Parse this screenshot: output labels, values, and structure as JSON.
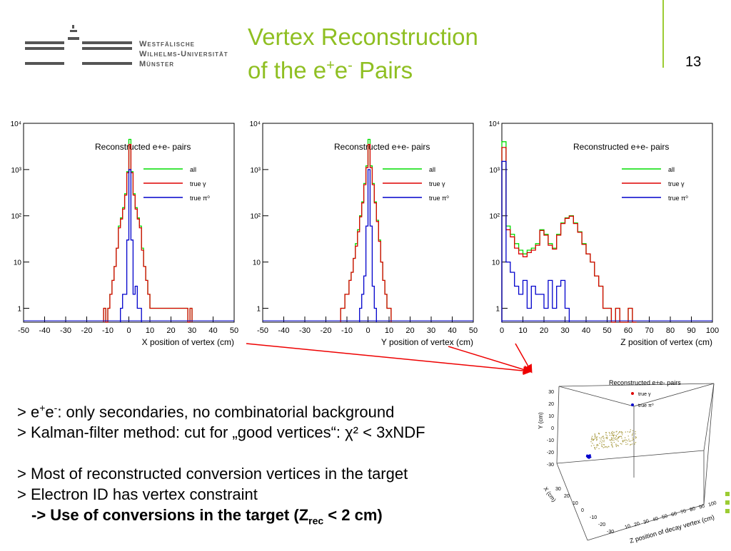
{
  "university": {
    "line1": "Westfälische",
    "line2": "Wilhelms-Universität",
    "line3": "Münster"
  },
  "title": {
    "line1": "Vertex Reconstruction",
    "line2_prefix": "of the e",
    "sup1": "+",
    "mid": "e",
    "sup2": "-",
    "suffix": " Pairs"
  },
  "page_number": "13",
  "colors": {
    "accent": "#9ccc33",
    "all": "#00dd00",
    "gamma": "#dd0000",
    "pi0": "#0000cc"
  },
  "chart_data": [
    {
      "type": "line",
      "title": "Reconstructed e+e- pairs",
      "xlabel": "X position of vertex (cm)",
      "xlim": [
        -50,
        50
      ],
      "ylim": [
        0.5,
        10000
      ],
      "yscale": "log",
      "xticks": [
        "-50",
        "-40",
        "-30",
        "-20",
        "-10",
        "0",
        "10",
        "20",
        "30",
        "40",
        "50"
      ],
      "yticks": [
        "1",
        "10",
        "10²",
        "10³",
        "10⁴"
      ],
      "legend": [
        "all",
        "true γ",
        "true π⁰"
      ],
      "bin_width": 1,
      "series": [
        {
          "name": "all",
          "x": [
            -12,
            -11,
            -10,
            -9,
            -8,
            -7,
            -6,
            -5,
            -4,
            -3,
            -2,
            -1,
            0,
            1,
            2,
            3,
            4,
            5,
            6,
            7,
            8,
            9,
            10,
            11,
            27,
            28,
            29
          ],
          "values": [
            1,
            0,
            1,
            2,
            4,
            8,
            20,
            60,
            90,
            150,
            300,
            900,
            4500,
            900,
            300,
            150,
            90,
            60,
            20,
            8,
            4,
            2,
            1,
            1,
            1,
            0,
            1
          ]
        },
        {
          "name": "true γ",
          "x": [
            -12,
            -11,
            -10,
            -9,
            -8,
            -7,
            -6,
            -5,
            -4,
            -3,
            -2,
            -1,
            0,
            1,
            2,
            3,
            4,
            5,
            6,
            7,
            8,
            9,
            10,
            11,
            27,
            28,
            29
          ],
          "values": [
            1,
            0,
            1,
            2,
            4,
            8,
            20,
            55,
            85,
            140,
            280,
            850,
            3500,
            850,
            280,
            140,
            85,
            55,
            18,
            8,
            4,
            2,
            1,
            1,
            1,
            0,
            1
          ]
        },
        {
          "name": "true π⁰",
          "x": [
            -4,
            -3,
            -2,
            -1,
            0,
            1,
            2,
            3,
            4,
            5
          ],
          "values": [
            1,
            2,
            2,
            30,
            1000,
            30,
            2,
            3,
            1,
            1
          ]
        }
      ]
    },
    {
      "type": "line",
      "title": "Reconstructed e+e- pairs",
      "xlabel": "Y position of vertex (cm)",
      "xlim": [
        -50,
        50
      ],
      "ylim": [
        0.5,
        10000
      ],
      "yscale": "log",
      "xticks": [
        "-50",
        "-40",
        "-30",
        "-20",
        "-10",
        "0",
        "10",
        "20",
        "30",
        "40",
        "50"
      ],
      "yticks": [
        "1",
        "10",
        "10²",
        "10³",
        "10⁴"
      ],
      "legend": [
        "all",
        "true γ",
        "true π⁰"
      ],
      "bin_width": 1,
      "series": [
        {
          "name": "all",
          "x": [
            -13,
            -12,
            -11,
            -10,
            -9,
            -8,
            -7,
            -6,
            -5,
            -4,
            -3,
            -2,
            -1,
            0,
            1,
            2,
            3,
            4,
            5,
            6,
            7,
            8,
            9,
            10
          ],
          "values": [
            1,
            1,
            2,
            2,
            4,
            6,
            12,
            25,
            50,
            100,
            200,
            500,
            1200,
            4500,
            1200,
            500,
            200,
            80,
            30,
            10,
            4,
            2,
            1,
            1
          ]
        },
        {
          "name": "true γ",
          "x": [
            -13,
            -12,
            -11,
            -10,
            -9,
            -8,
            -7,
            -6,
            -5,
            -4,
            -3,
            -2,
            -1,
            0,
            1,
            2,
            3,
            4,
            5,
            6,
            7,
            8,
            9,
            10
          ],
          "values": [
            1,
            1,
            2,
            2,
            4,
            6,
            12,
            22,
            45,
            95,
            190,
            470,
            1100,
            3500,
            1100,
            470,
            190,
            75,
            28,
            10,
            4,
            2,
            1,
            1
          ]
        },
        {
          "name": "true π⁰",
          "x": [
            -4,
            -3,
            -2,
            -1,
            0,
            1,
            2,
            3
          ],
          "values": [
            1,
            2,
            5,
            60,
            1000,
            60,
            3,
            1
          ]
        }
      ]
    },
    {
      "type": "line",
      "title": "Reconstructed e+e- pairs",
      "xlabel": "Z position of vertex (cm)",
      "xlim": [
        0,
        100
      ],
      "ylim": [
        0.5,
        10000
      ],
      "yscale": "log",
      "xticks": [
        "0",
        "10",
        "20",
        "30",
        "40",
        "50",
        "60",
        "70",
        "80",
        "90",
        "100"
      ],
      "yticks": [
        "1",
        "10",
        "10²",
        "10³",
        "10⁴"
      ],
      "legend": [
        "all",
        "true γ",
        "true π⁰"
      ],
      "bin_width": 2,
      "series": [
        {
          "name": "all",
          "x": [
            0,
            2,
            4,
            6,
            8,
            10,
            12,
            14,
            16,
            18,
            20,
            22,
            24,
            26,
            28,
            30,
            32,
            34,
            36,
            38,
            40,
            42,
            44,
            46,
            48,
            50,
            52,
            54,
            56,
            58,
            60,
            62
          ],
          "values": [
            4000,
            60,
            40,
            25,
            18,
            15,
            18,
            20,
            25,
            50,
            40,
            25,
            20,
            40,
            70,
            90,
            100,
            70,
            45,
            25,
            15,
            10,
            5,
            3,
            1,
            1,
            0,
            1,
            0,
            0,
            1,
            0
          ]
        },
        {
          "name": "true γ",
          "x": [
            0,
            2,
            4,
            6,
            8,
            10,
            12,
            14,
            16,
            18,
            20,
            22,
            24,
            26,
            28,
            30,
            32,
            34,
            36,
            38,
            40,
            42,
            44,
            46,
            48,
            50,
            52,
            54,
            56,
            58,
            60,
            62
          ],
          "values": [
            3000,
            50,
            35,
            20,
            15,
            13,
            16,
            18,
            23,
            48,
            38,
            23,
            19,
            38,
            68,
            88,
            98,
            68,
            44,
            24,
            15,
            10,
            5,
            3,
            1,
            1,
            0,
            1,
            0,
            0,
            1,
            0
          ]
        },
        {
          "name": "true π⁰",
          "x": [
            0,
            2,
            4,
            6,
            8,
            10,
            12,
            14,
            16,
            18,
            20,
            22,
            24,
            26,
            28,
            30
          ],
          "values": [
            1500,
            10,
            6,
            3,
            2,
            4,
            1,
            3,
            2,
            2,
            1,
            4,
            1,
            3,
            4,
            1
          ]
        }
      ]
    },
    {
      "type": "scatter",
      "title": "Reconstructed e+e- pairs",
      "xlabel": "X (cm)",
      "ylabel": "Y (cm)",
      "zlabel": "Z position of decay vertex (cm)",
      "legend": [
        "true γ",
        "true π⁰"
      ],
      "yticks": [
        "-30",
        "-20",
        "-10",
        "0",
        "10",
        "20",
        "30"
      ],
      "xticks": [
        "30",
        "20",
        "10",
        "0",
        "-10",
        "-20",
        "-30"
      ],
      "zticks": [
        "10",
        "20",
        "30",
        "40",
        "50",
        "60",
        "70",
        "80",
        "90",
        "100"
      ]
    }
  ],
  "bullets": {
    "l1_a": "> e",
    "l1_sup1": "+",
    "l1_b": "e",
    "l1_sup2": "-",
    "l1_c": ": only secondaries, no combinatorial background",
    "l2": "> Kalman-filter method: cut for „good vertices“: χ² < 3xNDF",
    "l3": "> Most of reconstructed conversion vertices in the target",
    "l4": "> Electron ID has vertex constraint",
    "l5_a": "-> Use of conversions in the target (Z",
    "l5_sub": "rec",
    "l5_b": " < 2 cm)"
  }
}
